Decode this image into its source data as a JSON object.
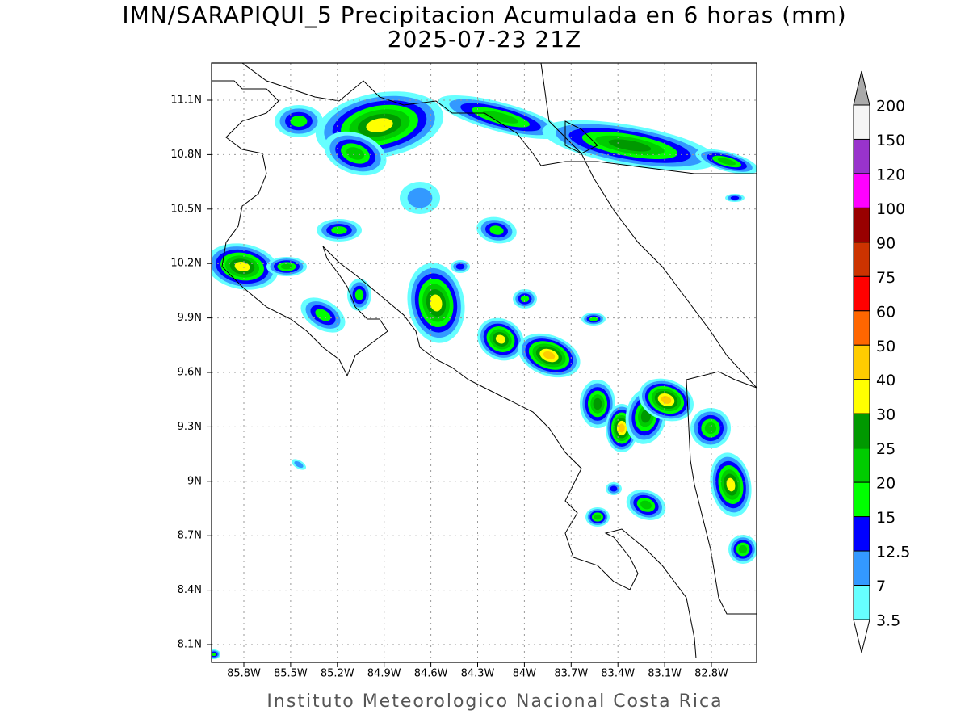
{
  "title": "IMN/SARAPIQUI_5 Precipitacion Acumulada en 6 horas (mm)",
  "subtitle": "2025-07-23 21Z",
  "map": {
    "lat_labels": [
      "11.1N",
      "10.8N",
      "10.5N",
      "10.2N",
      "9.9N",
      "9.6N",
      "9.3N",
      "9N",
      "8.7N",
      "8.4N",
      "8.1N"
    ],
    "lon_labels": [
      "85.8W",
      "85.5W",
      "85.2W",
      "84.9W",
      "84.6W",
      "84.3W",
      "84W",
      "83.7W",
      "83.4W",
      "83.1W",
      "82.8W"
    ]
  },
  "colorbar": {
    "levels": [
      200,
      150,
      120,
      100,
      90,
      75,
      60,
      50,
      40,
      30,
      25,
      20,
      15,
      12.5,
      7,
      3.5
    ],
    "colors": [
      "#f5f5f5",
      "#9933cc",
      "#ff00ff",
      "#990000",
      "#cc3300",
      "#ff0000",
      "#ff6600",
      "#ffcc00",
      "#ffff00",
      "#009900",
      "#00cc00",
      "#00ff00",
      "#0000ff",
      "#3399ff",
      "#66ffff"
    ]
  },
  "footer": "Instituto Meteorologico Nacional Costa Rica"
}
